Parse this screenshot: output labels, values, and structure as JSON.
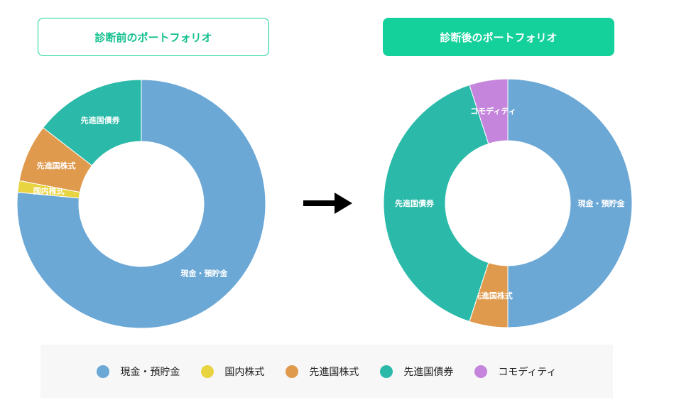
{
  "titles": {
    "before": "診断前のポートフォリオ",
    "after": "診断後のポートフォリオ"
  },
  "colors": {
    "accent": "#14d19b",
    "cash": "#6ca8d6",
    "domestic": "#e8d440",
    "dev_stocks": "#e09a4d",
    "dev_bonds": "#2bbaa9",
    "commodity": "#c585dc",
    "legend_bg": "#f7f7f7"
  },
  "arrow_icon": "right-arrow-icon",
  "chart_data": [
    {
      "type": "pie",
      "donut": true,
      "title": "診断前のポートフォリオ",
      "categories": [
        "現金・預貯金",
        "国内株式",
        "先進国株式",
        "先進国債券"
      ],
      "values": [
        76.5,
        1.5,
        7.5,
        14.5
      ],
      "colors": [
        "#6ca8d6",
        "#e8d440",
        "#e09a4d",
        "#2bbaa9"
      ],
      "slice_labels": [
        "現金・預貯金",
        "国内株式",
        "先進国株式",
        "先進国債券"
      ]
    },
    {
      "type": "pie",
      "donut": true,
      "title": "診断後のポートフォリオ",
      "categories": [
        "現金・預貯金",
        "先進国株式",
        "先進国債券",
        "コモディティ"
      ],
      "values": [
        50,
        5,
        40,
        5
      ],
      "colors": [
        "#6ca8d6",
        "#e09a4d",
        "#2bbaa9",
        "#c585dc"
      ],
      "slice_labels": [
        "現金・預貯金",
        "先進国株式",
        "先進国債券",
        "コモディティ"
      ]
    }
  ],
  "legend": [
    {
      "label": "現金・預貯金",
      "color": "#6ca8d6"
    },
    {
      "label": "国内株式",
      "color": "#e8d440"
    },
    {
      "label": "先進国株式",
      "color": "#e09a4d"
    },
    {
      "label": "先進国債券",
      "color": "#2bbaa9"
    },
    {
      "label": "コモディティ",
      "color": "#c585dc"
    }
  ]
}
